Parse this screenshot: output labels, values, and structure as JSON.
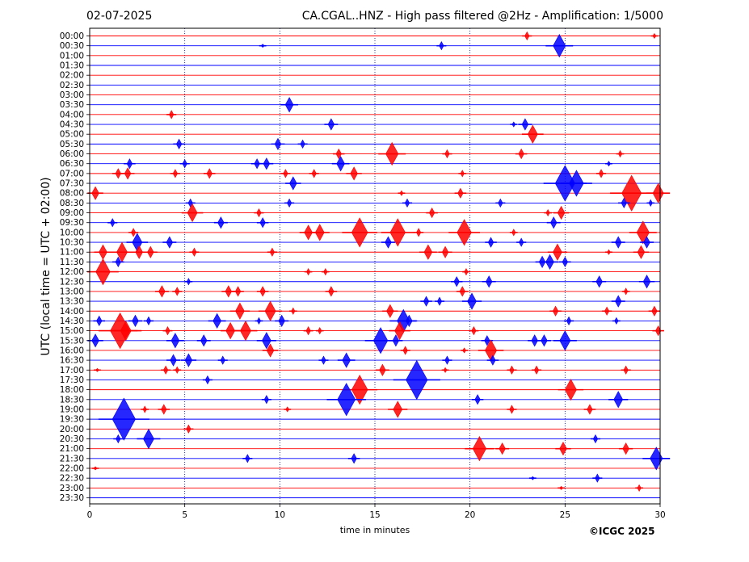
{
  "header": {
    "date": "02-07-2025",
    "title": "CA.CGAL..HNZ - High pass filtered @2Hz - Amplification: 1/5000"
  },
  "footer": {
    "copyright": "©ICGC 2025"
  },
  "chart_data": {
    "type": "line",
    "xlabel": "time in minutes",
    "ylabel": "UTC (local time = UTC + 02:00)",
    "xlim": [
      0,
      30
    ],
    "xticks": [
      0,
      5,
      10,
      15,
      20,
      25,
      30
    ],
    "grid": "vertical dotted lines every 5 minutes",
    "colors": {
      "odd_row": "#ff0000",
      "even_row": "#0000ff"
    },
    "rows": [
      "00:00",
      "00:30",
      "01:00",
      "01:30",
      "02:00",
      "02:30",
      "03:00",
      "03:30",
      "04:00",
      "04:30",
      "05:00",
      "05:30",
      "06:00",
      "06:30",
      "07:00",
      "07:30",
      "08:00",
      "08:30",
      "09:00",
      "09:30",
      "10:00",
      "10:30",
      "11:00",
      "11:30",
      "12:00",
      "12:30",
      "13:00",
      "13:30",
      "14:00",
      "14:30",
      "15:00",
      "15:30",
      "16:00",
      "16:30",
      "17:00",
      "17:30",
      "18:00",
      "18:30",
      "19:00",
      "19:30",
      "20:00",
      "20:30",
      "21:00",
      "21:30",
      "22:00",
      "22:30",
      "23:00",
      "23:30"
    ],
    "events": [
      {
        "row": "00:00",
        "t": 23.0,
        "a": 5
      },
      {
        "row": "00:00",
        "t": 29.7,
        "a": 3
      },
      {
        "row": "00:30",
        "t": 9.1,
        "a": 2
      },
      {
        "row": "00:30",
        "t": 18.5,
        "a": 5
      },
      {
        "row": "00:30",
        "t": 24.7,
        "a": 14
      },
      {
        "row": "03:30",
        "t": 10.5,
        "a": 9
      },
      {
        "row": "04:00",
        "t": 4.3,
        "a": 5
      },
      {
        "row": "04:30",
        "t": 12.7,
        "a": 7
      },
      {
        "row": "04:30",
        "t": 22.9,
        "a": 7
      },
      {
        "row": "04:30",
        "t": 22.3,
        "a": 3
      },
      {
        "row": "05:00",
        "t": 23.3,
        "a": 11
      },
      {
        "row": "05:30",
        "t": 4.7,
        "a": 6
      },
      {
        "row": "05:30",
        "t": 9.9,
        "a": 7
      },
      {
        "row": "05:30",
        "t": 11.2,
        "a": 5
      },
      {
        "row": "06:00",
        "t": 13.1,
        "a": 6
      },
      {
        "row": "06:00",
        "t": 15.9,
        "a": 14
      },
      {
        "row": "06:00",
        "t": 18.8,
        "a": 5
      },
      {
        "row": "06:00",
        "t": 22.7,
        "a": 6
      },
      {
        "row": "06:00",
        "t": 27.9,
        "a": 4
      },
      {
        "row": "06:30",
        "t": 2.1,
        "a": 6
      },
      {
        "row": "06:30",
        "t": 5.0,
        "a": 5
      },
      {
        "row": "06:30",
        "t": 8.8,
        "a": 6
      },
      {
        "row": "06:30",
        "t": 9.3,
        "a": 7
      },
      {
        "row": "06:30",
        "t": 13.2,
        "a": 9
      },
      {
        "row": "06:30",
        "t": 27.3,
        "a": 3
      },
      {
        "row": "07:00",
        "t": 1.5,
        "a": 6
      },
      {
        "row": "07:00",
        "t": 2.0,
        "a": 7
      },
      {
        "row": "07:00",
        "t": 4.5,
        "a": 5
      },
      {
        "row": "07:00",
        "t": 6.3,
        "a": 6
      },
      {
        "row": "07:00",
        "t": 10.3,
        "a": 5
      },
      {
        "row": "07:00",
        "t": 11.8,
        "a": 5
      },
      {
        "row": "07:00",
        "t": 13.9,
        "a": 8
      },
      {
        "row": "07:00",
        "t": 19.6,
        "a": 4
      },
      {
        "row": "07:00",
        "t": 26.9,
        "a": 5
      },
      {
        "row": "07:30",
        "t": 10.7,
        "a": 8
      },
      {
        "row": "07:30",
        "t": 25.0,
        "a": 22
      },
      {
        "row": "07:30",
        "t": 25.6,
        "a": 16
      },
      {
        "row": "08:00",
        "t": 0.3,
        "a": 8
      },
      {
        "row": "08:00",
        "t": 16.4,
        "a": 3
      },
      {
        "row": "08:00",
        "t": 19.5,
        "a": 6
      },
      {
        "row": "08:00",
        "t": 28.5,
        "a": 22
      },
      {
        "row": "08:00",
        "t": 29.9,
        "a": 12
      },
      {
        "row": "08:30",
        "t": 5.3,
        "a": 5
      },
      {
        "row": "08:30",
        "t": 10.5,
        "a": 5
      },
      {
        "row": "08:30",
        "t": 16.7,
        "a": 5
      },
      {
        "row": "08:30",
        "t": 21.6,
        "a": 5
      },
      {
        "row": "08:30",
        "t": 28.1,
        "a": 6
      },
      {
        "row": "08:30",
        "t": 29.5,
        "a": 4
      },
      {
        "row": "09:00",
        "t": 5.4,
        "a": 11
      },
      {
        "row": "09:00",
        "t": 8.9,
        "a": 5
      },
      {
        "row": "09:00",
        "t": 18.0,
        "a": 6
      },
      {
        "row": "09:00",
        "t": 24.8,
        "a": 8
      },
      {
        "row": "09:00",
        "t": 24.1,
        "a": 4
      },
      {
        "row": "09:30",
        "t": 1.2,
        "a": 5
      },
      {
        "row": "09:30",
        "t": 6.9,
        "a": 7
      },
      {
        "row": "09:30",
        "t": 9.1,
        "a": 6
      },
      {
        "row": "09:30",
        "t": 24.4,
        "a": 7
      },
      {
        "row": "10:00",
        "t": 2.3,
        "a": 5
      },
      {
        "row": "10:00",
        "t": 11.5,
        "a": 9
      },
      {
        "row": "10:00",
        "t": 12.1,
        "a": 10
      },
      {
        "row": "10:00",
        "t": 14.2,
        "a": 18
      },
      {
        "row": "10:00",
        "t": 16.2,
        "a": 17
      },
      {
        "row": "10:00",
        "t": 17.3,
        "a": 5
      },
      {
        "row": "10:00",
        "t": 19.7,
        "a": 16
      },
      {
        "row": "10:00",
        "t": 22.3,
        "a": 4
      },
      {
        "row": "10:00",
        "t": 29.1,
        "a": 14
      },
      {
        "row": "10:30",
        "t": 2.5,
        "a": 11
      },
      {
        "row": "10:30",
        "t": 4.2,
        "a": 7
      },
      {
        "row": "10:30",
        "t": 15.7,
        "a": 7
      },
      {
        "row": "10:30",
        "t": 21.1,
        "a": 6
      },
      {
        "row": "10:30",
        "t": 22.7,
        "a": 5
      },
      {
        "row": "10:30",
        "t": 27.8,
        "a": 7
      },
      {
        "row": "10:30",
        "t": 29.3,
        "a": 7
      },
      {
        "row": "11:00",
        "t": 0.7,
        "a": 9
      },
      {
        "row": "11:00",
        "t": 1.7,
        "a": 12
      },
      {
        "row": "11:00",
        "t": 2.6,
        "a": 8
      },
      {
        "row": "11:00",
        "t": 3.2,
        "a": 7
      },
      {
        "row": "11:00",
        "t": 5.5,
        "a": 5
      },
      {
        "row": "11:00",
        "t": 9.6,
        "a": 5
      },
      {
        "row": "11:00",
        "t": 17.8,
        "a": 9
      },
      {
        "row": "11:00",
        "t": 18.7,
        "a": 7
      },
      {
        "row": "11:00",
        "t": 24.6,
        "a": 10
      },
      {
        "row": "11:00",
        "t": 27.3,
        "a": 3
      },
      {
        "row": "11:00",
        "t": 29.0,
        "a": 8
      },
      {
        "row": "11:30",
        "t": 1.5,
        "a": 6
      },
      {
        "row": "11:30",
        "t": 23.8,
        "a": 7
      },
      {
        "row": "11:30",
        "t": 24.2,
        "a": 9
      },
      {
        "row": "11:30",
        "t": 25.0,
        "a": 6
      },
      {
        "row": "12:00",
        "t": 0.7,
        "a": 16
      },
      {
        "row": "12:00",
        "t": 11.5,
        "a": 4
      },
      {
        "row": "12:00",
        "t": 12.4,
        "a": 4
      },
      {
        "row": "12:00",
        "t": 19.8,
        "a": 4
      },
      {
        "row": "12:30",
        "t": 5.2,
        "a": 4
      },
      {
        "row": "12:30",
        "t": 19.3,
        "a": 6
      },
      {
        "row": "12:30",
        "t": 21.0,
        "a": 7
      },
      {
        "row": "12:30",
        "t": 26.8,
        "a": 7
      },
      {
        "row": "12:30",
        "t": 29.3,
        "a": 8
      },
      {
        "row": "13:00",
        "t": 3.8,
        "a": 7
      },
      {
        "row": "13:00",
        "t": 4.6,
        "a": 5
      },
      {
        "row": "13:00",
        "t": 7.3,
        "a": 7
      },
      {
        "row": "13:00",
        "t": 7.8,
        "a": 6
      },
      {
        "row": "13:00",
        "t": 9.1,
        "a": 6
      },
      {
        "row": "13:00",
        "t": 12.7,
        "a": 6
      },
      {
        "row": "13:00",
        "t": 19.6,
        "a": 6
      },
      {
        "row": "13:00",
        "t": 28.2,
        "a": 4
      },
      {
        "row": "13:30",
        "t": 17.7,
        "a": 6
      },
      {
        "row": "13:30",
        "t": 18.4,
        "a": 5
      },
      {
        "row": "13:30",
        "t": 20.1,
        "a": 10
      },
      {
        "row": "13:30",
        "t": 27.8,
        "a": 7
      },
      {
        "row": "14:00",
        "t": 7.9,
        "a": 10
      },
      {
        "row": "14:00",
        "t": 9.5,
        "a": 12
      },
      {
        "row": "14:00",
        "t": 10.7,
        "a": 4
      },
      {
        "row": "14:00",
        "t": 15.8,
        "a": 8
      },
      {
        "row": "14:00",
        "t": 24.5,
        "a": 6
      },
      {
        "row": "14:00",
        "t": 27.2,
        "a": 5
      },
      {
        "row": "14:00",
        "t": 29.7,
        "a": 6
      },
      {
        "row": "14:30",
        "t": 0.5,
        "a": 6
      },
      {
        "row": "14:30",
        "t": 2.4,
        "a": 7
      },
      {
        "row": "14:30",
        "t": 3.1,
        "a": 5
      },
      {
        "row": "14:30",
        "t": 6.7,
        "a": 9
      },
      {
        "row": "14:30",
        "t": 8.9,
        "a": 4
      },
      {
        "row": "14:30",
        "t": 10.1,
        "a": 7
      },
      {
        "row": "14:30",
        "t": 16.5,
        "a": 14
      },
      {
        "row": "14:30",
        "t": 16.8,
        "a": 7
      },
      {
        "row": "14:30",
        "t": 25.2,
        "a": 5
      },
      {
        "row": "14:30",
        "t": 27.7,
        "a": 4
      },
      {
        "row": "15:00",
        "t": 1.6,
        "a": 22
      },
      {
        "row": "15:00",
        "t": 1.9,
        "a": 12
      },
      {
        "row": "15:00",
        "t": 4.1,
        "a": 5
      },
      {
        "row": "15:00",
        "t": 7.4,
        "a": 10
      },
      {
        "row": "15:00",
        "t": 8.2,
        "a": 12
      },
      {
        "row": "15:00",
        "t": 11.5,
        "a": 5
      },
      {
        "row": "15:00",
        "t": 12.1,
        "a": 4
      },
      {
        "row": "15:00",
        "t": 16.3,
        "a": 11
      },
      {
        "row": "15:00",
        "t": 20.2,
        "a": 5
      },
      {
        "row": "15:00",
        "t": 29.9,
        "a": 6
      },
      {
        "row": "15:30",
        "t": 0.3,
        "a": 8
      },
      {
        "row": "15:30",
        "t": 4.5,
        "a": 9
      },
      {
        "row": "15:30",
        "t": 6.0,
        "a": 7
      },
      {
        "row": "15:30",
        "t": 9.3,
        "a": 10
      },
      {
        "row": "15:30",
        "t": 15.3,
        "a": 16
      },
      {
        "row": "15:30",
        "t": 16.1,
        "a": 7
      },
      {
        "row": "15:30",
        "t": 20.9,
        "a": 6
      },
      {
        "row": "15:30",
        "t": 23.4,
        "a": 7
      },
      {
        "row": "15:30",
        "t": 23.9,
        "a": 7
      },
      {
        "row": "15:30",
        "t": 25.0,
        "a": 12
      },
      {
        "row": "16:00",
        "t": 9.5,
        "a": 8
      },
      {
        "row": "16:00",
        "t": 16.6,
        "a": 5
      },
      {
        "row": "16:00",
        "t": 19.7,
        "a": 3
      },
      {
        "row": "16:00",
        "t": 21.1,
        "a": 13
      },
      {
        "row": "16:30",
        "t": 4.4,
        "a": 7
      },
      {
        "row": "16:30",
        "t": 5.2,
        "a": 8
      },
      {
        "row": "16:30",
        "t": 7.0,
        "a": 5
      },
      {
        "row": "16:30",
        "t": 12.3,
        "a": 5
      },
      {
        "row": "16:30",
        "t": 13.5,
        "a": 9
      },
      {
        "row": "16:30",
        "t": 18.8,
        "a": 5
      },
      {
        "row": "16:30",
        "t": 21.2,
        "a": 6
      },
      {
        "row": "17:00",
        "t": 0.4,
        "a": 2
      },
      {
        "row": "17:00",
        "t": 4.0,
        "a": 5
      },
      {
        "row": "17:00",
        "t": 4.6,
        "a": 4
      },
      {
        "row": "17:00",
        "t": 15.4,
        "a": 7
      },
      {
        "row": "17:00",
        "t": 18.7,
        "a": 3
      },
      {
        "row": "17:00",
        "t": 22.2,
        "a": 5
      },
      {
        "row": "17:00",
        "t": 23.5,
        "a": 5
      },
      {
        "row": "17:00",
        "t": 28.2,
        "a": 5
      },
      {
        "row": "17:30",
        "t": 6.2,
        "a": 5
      },
      {
        "row": "17:30",
        "t": 17.2,
        "a": 24
      },
      {
        "row": "18:00",
        "t": 14.2,
        "a": 18
      },
      {
        "row": "18:00",
        "t": 25.3,
        "a": 13
      },
      {
        "row": "18:30",
        "t": 9.3,
        "a": 5
      },
      {
        "row": "18:30",
        "t": 13.5,
        "a": 20
      },
      {
        "row": "18:30",
        "t": 20.4,
        "a": 6
      },
      {
        "row": "18:30",
        "t": 27.8,
        "a": 10
      },
      {
        "row": "19:00",
        "t": 2.9,
        "a": 4
      },
      {
        "row": "19:00",
        "t": 3.9,
        "a": 6
      },
      {
        "row": "19:00",
        "t": 10.4,
        "a": 3
      },
      {
        "row": "19:00",
        "t": 16.2,
        "a": 10
      },
      {
        "row": "19:00",
        "t": 22.2,
        "a": 5
      },
      {
        "row": "19:00",
        "t": 26.3,
        "a": 6
      },
      {
        "row": "19:30",
        "t": 1.8,
        "a": 26
      },
      {
        "row": "20:00",
        "t": 5.2,
        "a": 5
      },
      {
        "row": "20:30",
        "t": 1.5,
        "a": 5
      },
      {
        "row": "20:30",
        "t": 3.1,
        "a": 12
      },
      {
        "row": "20:30",
        "t": 26.6,
        "a": 5
      },
      {
        "row": "21:00",
        "t": 20.5,
        "a": 15
      },
      {
        "row": "21:00",
        "t": 21.7,
        "a": 7
      },
      {
        "row": "21:00",
        "t": 24.9,
        "a": 8
      },
      {
        "row": "21:00",
        "t": 28.2,
        "a": 7
      },
      {
        "row": "21:30",
        "t": 8.3,
        "a": 5
      },
      {
        "row": "21:30",
        "t": 13.9,
        "a": 6
      },
      {
        "row": "21:30",
        "t": 29.8,
        "a": 14
      },
      {
        "row": "22:00",
        "t": 0.3,
        "a": 2
      },
      {
        "row": "22:30",
        "t": 23.3,
        "a": 2
      },
      {
        "row": "22:30",
        "t": 26.7,
        "a": 5
      },
      {
        "row": "23:00",
        "t": 24.8,
        "a": 2
      },
      {
        "row": "23:00",
        "t": 28.9,
        "a": 4
      }
    ]
  }
}
